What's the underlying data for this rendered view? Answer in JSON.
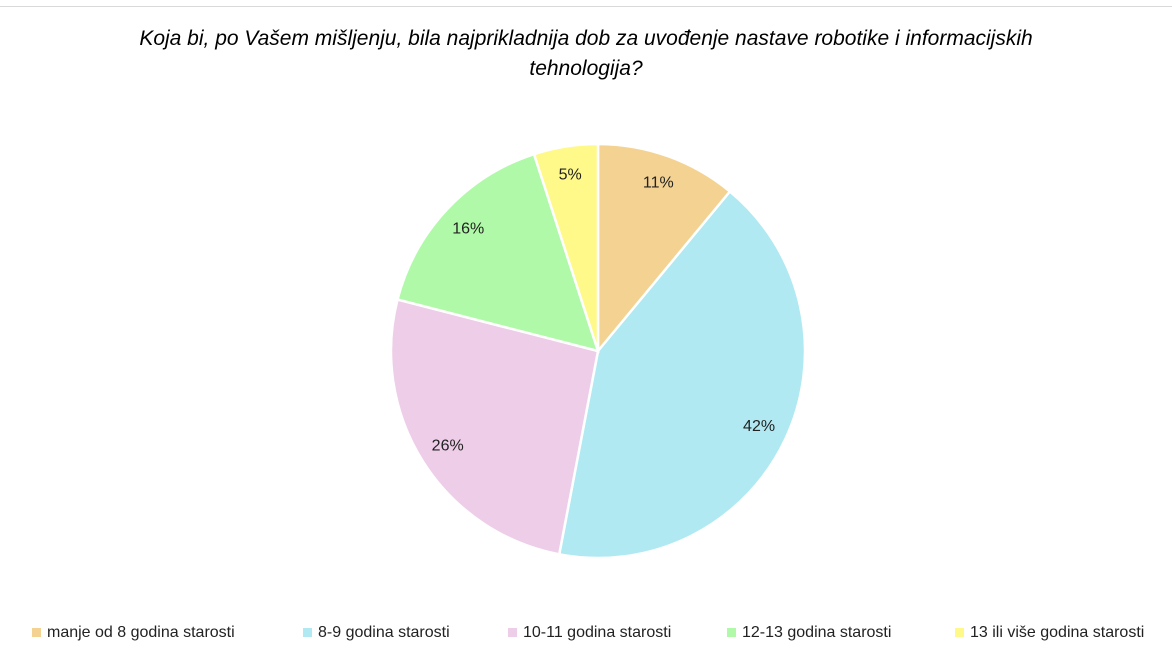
{
  "chart_data": {
    "type": "pie",
    "title": "Koja bi, po Vašem mišljenju, bila najprikladnija dob za uvođenje nastave robotike i informacijskih tehnologija?",
    "categories": [
      "manje od 8 godina starosti",
      "8-9 godina starosti",
      "10-11 godina starosti",
      "12-13 godina starosti",
      "13 ili više godina starosti"
    ],
    "values": [
      11,
      42,
      26,
      16,
      5
    ],
    "value_labels": [
      "11%",
      "42%",
      "26%",
      "16%",
      "5%"
    ],
    "colors": [
      "#f4d291",
      "#b0e9f2",
      "#eecde8",
      "#b0f9a8",
      "#fff98a"
    ],
    "legend": "bottom"
  }
}
